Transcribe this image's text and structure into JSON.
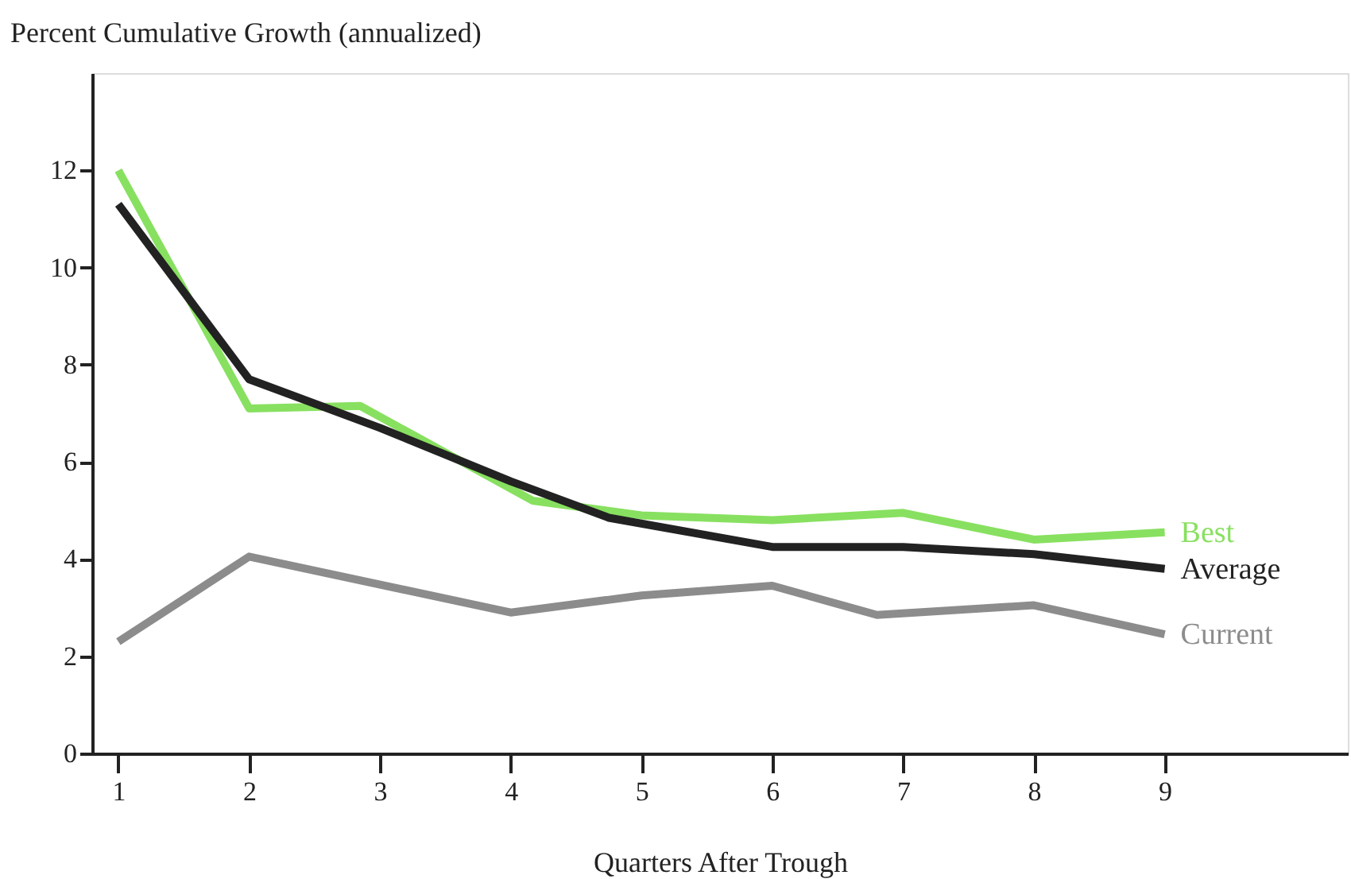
{
  "chart_data": {
    "type": "line",
    "xlabel": "Quarters After Trough",
    "ylabel": "Percent Cumulative Growth (annualized)",
    "xlim": [
      0.8,
      10.4
    ],
    "ylim": [
      0,
      14
    ],
    "xticks": [
      1,
      2,
      3,
      4,
      5,
      6,
      7,
      8,
      9
    ],
    "yticks": [
      0,
      2,
      4,
      6,
      8,
      10,
      12
    ],
    "line_style": "solid",
    "marker": "none",
    "series": [
      {
        "name": "Best",
        "color": "#88e060",
        "x": [
          1,
          2,
          2.85,
          4.17,
          5,
          6,
          7,
          8,
          9
        ],
        "values": [
          12.0,
          7.1,
          7.15,
          5.2,
          4.9,
          4.8,
          4.95,
          4.4,
          4.55
        ]
      },
      {
        "name": "Average",
        "color": "#222222",
        "x": [
          1,
          2,
          3,
          4,
          4.75,
          6,
          7,
          8,
          9
        ],
        "values": [
          11.3,
          7.7,
          6.7,
          5.6,
          4.85,
          4.25,
          4.25,
          4.1,
          3.8
        ]
      },
      {
        "name": "Current",
        "color": "#8c8c8c",
        "x": [
          1,
          2,
          4,
          5,
          6,
          6.8,
          8,
          9
        ],
        "values": [
          2.3,
          4.05,
          2.9,
          3.25,
          3.45,
          2.85,
          3.05,
          2.45
        ]
      }
    ]
  }
}
